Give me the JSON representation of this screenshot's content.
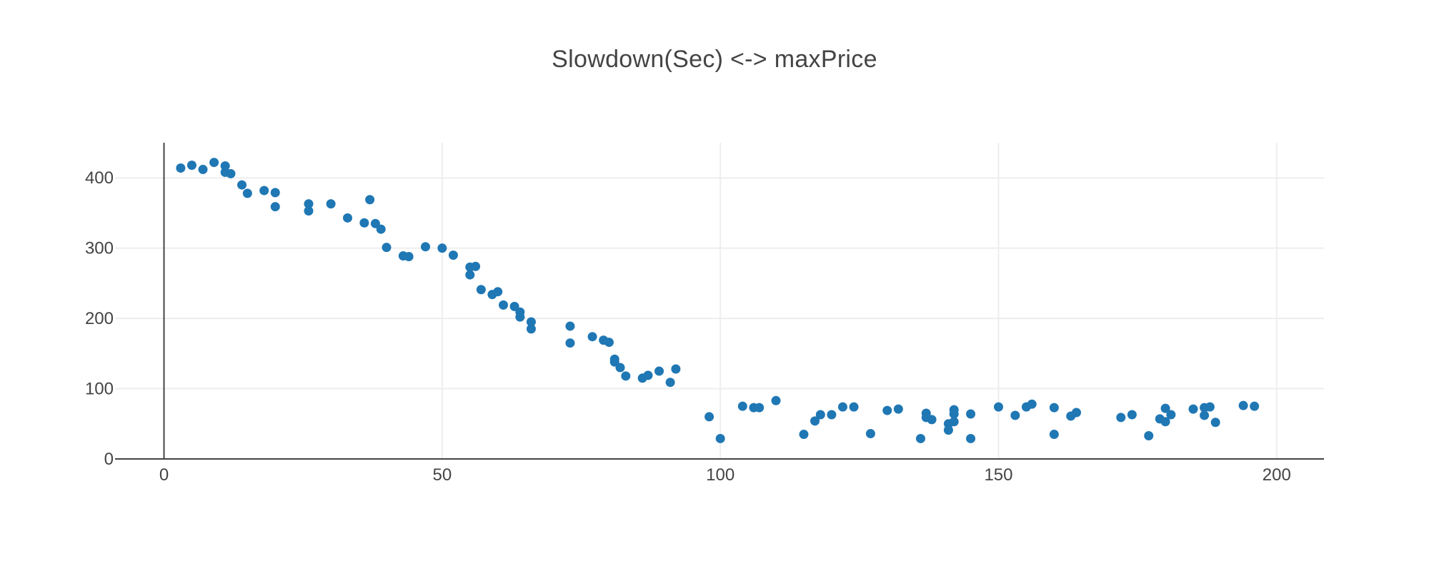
{
  "chart_data": {
    "type": "scatter",
    "title": "Slowdown(Sec) <-> maxPrice",
    "xlabel": "",
    "ylabel": "",
    "xlim": [
      -8.8,
      208.5
    ],
    "ylim": [
      0,
      450
    ],
    "x_ticks": [
      0,
      50,
      100,
      150,
      200
    ],
    "y_ticks": [
      0,
      100,
      200,
      300,
      400
    ],
    "grid": true,
    "marker_color": "#1f77b4",
    "grid_color": "#eeeeee",
    "axis_color": "#444444",
    "series": [
      {
        "points": [
          [
            3,
            414
          ],
          [
            5,
            418
          ],
          [
            7,
            412
          ],
          [
            9,
            422
          ],
          [
            11,
            417
          ],
          [
            11,
            408
          ],
          [
            12,
            406
          ],
          [
            14,
            390
          ],
          [
            15,
            378
          ],
          [
            18,
            382
          ],
          [
            20,
            379
          ],
          [
            20,
            359
          ],
          [
            26,
            363
          ],
          [
            26,
            353
          ],
          [
            30,
            363
          ],
          [
            33,
            343
          ],
          [
            36,
            336
          ],
          [
            37,
            369
          ],
          [
            38,
            335
          ],
          [
            39,
            327
          ],
          [
            40,
            301
          ],
          [
            43,
            289
          ],
          [
            44,
            288
          ],
          [
            47,
            302
          ],
          [
            50,
            300
          ],
          [
            52,
            290
          ],
          [
            55,
            273
          ],
          [
            55,
            262
          ],
          [
            56,
            274
          ],
          [
            57,
            241
          ],
          [
            59,
            234
          ],
          [
            60,
            238
          ],
          [
            61,
            219
          ],
          [
            63,
            217
          ],
          [
            64,
            209
          ],
          [
            64,
            202
          ],
          [
            66,
            195
          ],
          [
            66,
            185
          ],
          [
            73,
            189
          ],
          [
            73,
            165
          ],
          [
            77,
            174
          ],
          [
            79,
            169
          ],
          [
            80,
            166
          ],
          [
            81,
            142
          ],
          [
            81,
            138
          ],
          [
            82,
            130
          ],
          [
            83,
            118
          ],
          [
            86,
            115
          ],
          [
            87,
            119
          ],
          [
            89,
            125
          ],
          [
            91,
            109
          ],
          [
            92,
            128
          ],
          [
            98,
            60
          ],
          [
            100,
            29
          ],
          [
            104,
            75
          ],
          [
            106,
            73
          ],
          [
            107,
            73
          ],
          [
            110,
            83
          ],
          [
            115,
            35
          ],
          [
            117,
            54
          ],
          [
            118,
            63
          ],
          [
            120,
            63
          ],
          [
            122,
            74
          ],
          [
            124,
            74
          ],
          [
            127,
            36
          ],
          [
            130,
            69
          ],
          [
            132,
            71
          ],
          [
            136,
            29
          ],
          [
            137,
            65
          ],
          [
            137,
            59
          ],
          [
            138,
            56
          ],
          [
            141,
            50
          ],
          [
            141,
            41
          ],
          [
            142,
            70
          ],
          [
            142,
            64
          ],
          [
            142,
            53
          ],
          [
            145,
            64
          ],
          [
            145,
            29
          ],
          [
            150,
            74
          ],
          [
            153,
            62
          ],
          [
            155,
            74
          ],
          [
            156,
            78
          ],
          [
            160,
            73
          ],
          [
            160,
            35
          ],
          [
            163,
            61
          ],
          [
            164,
            66
          ],
          [
            172,
            59
          ],
          [
            174,
            63
          ],
          [
            177,
            33
          ],
          [
            179,
            57
          ],
          [
            180,
            72
          ],
          [
            180,
            53
          ],
          [
            181,
            63
          ],
          [
            185,
            71
          ],
          [
            187,
            73
          ],
          [
            187,
            62
          ],
          [
            188,
            74
          ],
          [
            189,
            52
          ],
          [
            194,
            76
          ],
          [
            196,
            75
          ]
        ]
      }
    ]
  }
}
